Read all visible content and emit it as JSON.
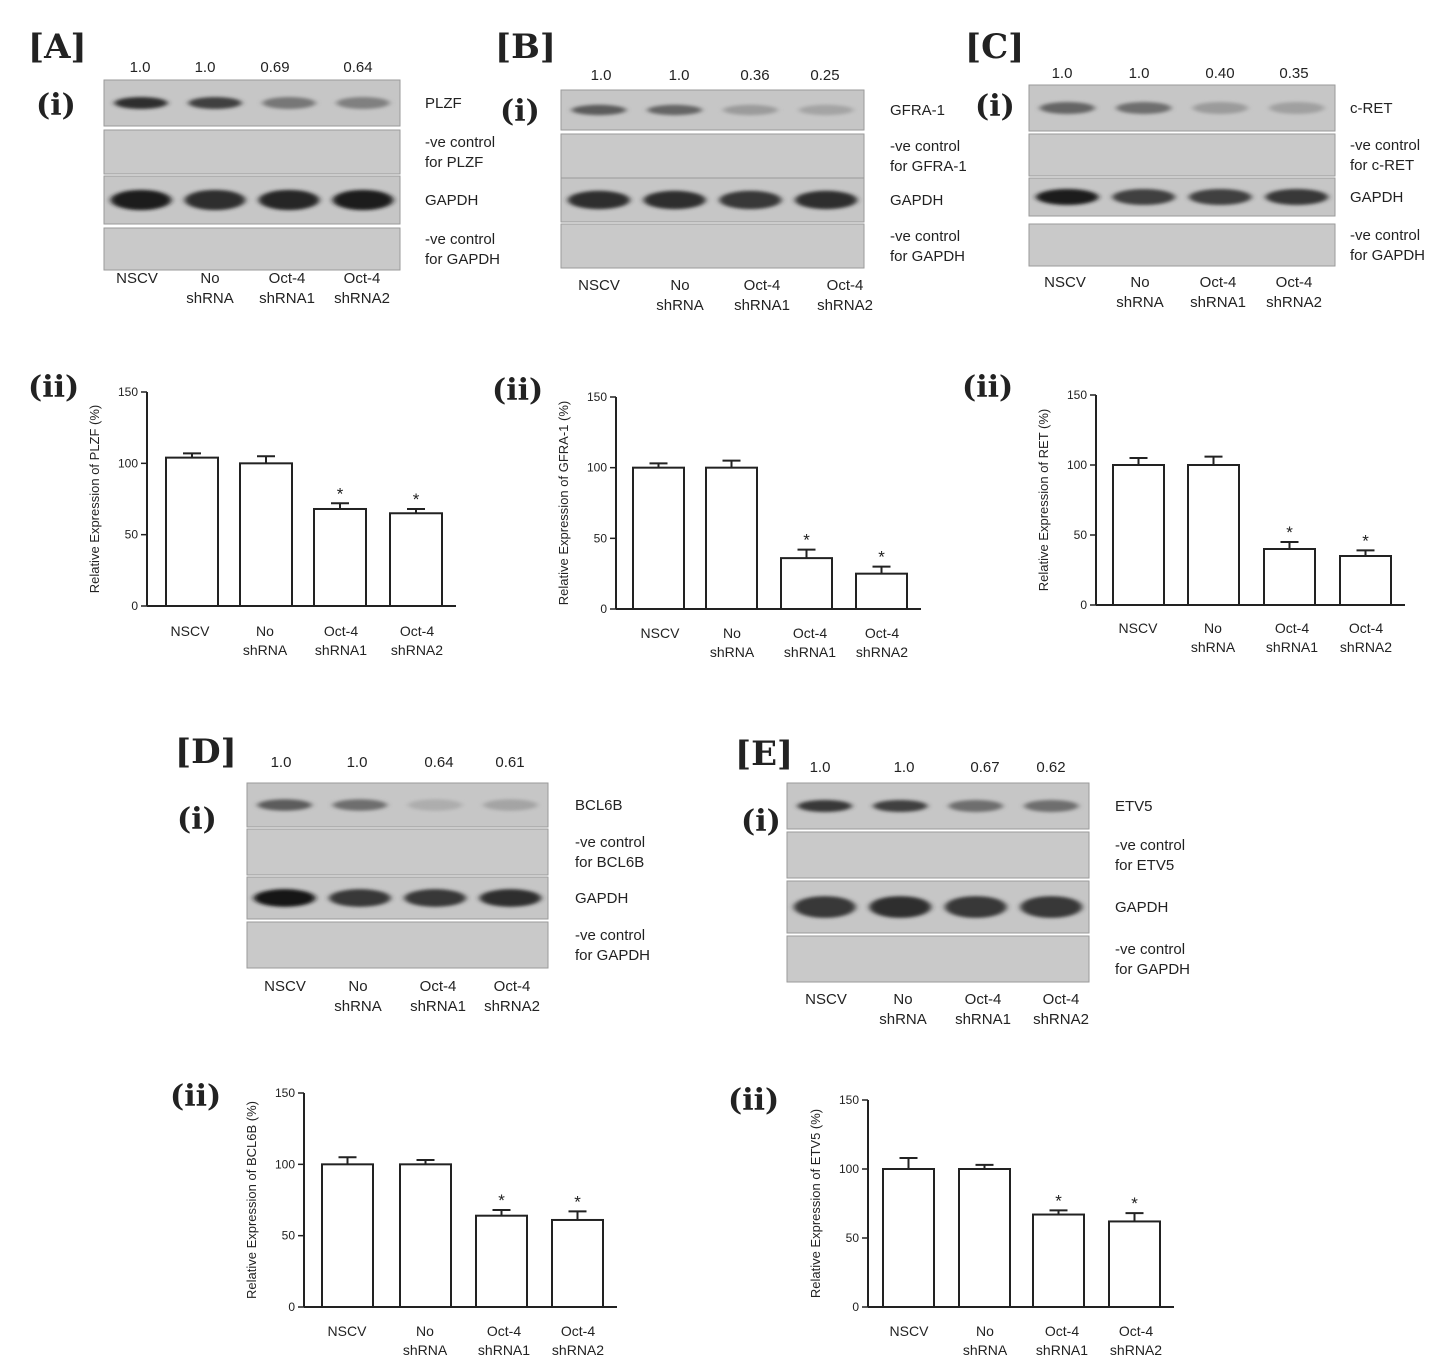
{
  "lanes": [
    [
      "NSCV"
    ],
    [
      "No",
      "shRNA"
    ],
    [
      "Oct-4",
      "shRNA1"
    ],
    [
      "Oct-4",
      "shRNA2"
    ]
  ],
  "sub_labels": {
    "blot": "(i)",
    "chart": "(ii)"
  },
  "significance_marker": "*",
  "panels": [
    {
      "letter": "[A]",
      "densitometry": [
        "1.0",
        "1.0",
        "0.69",
        "0.64"
      ],
      "blot_rows": [
        {
          "type": "target",
          "label": [
            "PLZF"
          ],
          "bands": [
            0.85,
            0.75,
            0.45,
            0.4
          ]
        },
        {
          "type": "control",
          "label": [
            "-ve control",
            "for PLZF"
          ]
        },
        {
          "type": "gapdh",
          "label": [
            "GAPDH"
          ],
          "bands": [
            0.95,
            0.85,
            0.9,
            0.95
          ]
        },
        {
          "type": "control",
          "label": [
            "-ve control",
            "for GAPDH"
          ]
        }
      ]
    },
    {
      "letter": "[B]",
      "densitometry": [
        "1.0",
        "1.0",
        "0.36",
        "0.25"
      ],
      "blot_rows": [
        {
          "type": "target",
          "label": [
            "GFRA-1"
          ],
          "bands": [
            0.6,
            0.55,
            0.25,
            0.2
          ]
        },
        {
          "type": "control",
          "label": [
            "-ve control",
            "for GFRA-1"
          ]
        },
        {
          "type": "gapdh",
          "label": [
            "GAPDH"
          ],
          "bands": [
            0.85,
            0.85,
            0.8,
            0.85
          ]
        },
        {
          "type": "control",
          "label": [
            "-ve control",
            "for GAPDH"
          ]
        }
      ]
    },
    {
      "letter": "[C]",
      "densitometry": [
        "1.0",
        "1.0",
        "0.40",
        "0.35"
      ],
      "blot_rows": [
        {
          "type": "target",
          "label": [
            "c-RET"
          ],
          "bands": [
            0.55,
            0.5,
            0.25,
            0.22
          ]
        },
        {
          "type": "control",
          "label": [
            "-ve control",
            "for c-RET"
          ]
        },
        {
          "type": "gapdh",
          "label": [
            "GAPDH"
          ],
          "bands": [
            0.95,
            0.75,
            0.75,
            0.8
          ]
        },
        {
          "type": "control",
          "label": [
            "-ve control",
            "for GAPDH"
          ]
        }
      ]
    },
    {
      "letter": "[D]",
      "densitometry": [
        "1.0",
        "1.0",
        "0.64",
        "0.61"
      ],
      "blot_rows": [
        {
          "type": "target",
          "label": [
            "BCL6B"
          ],
          "bands": [
            0.6,
            0.5,
            0.15,
            0.2
          ]
        },
        {
          "type": "control",
          "label": [
            "-ve control",
            "for BCL6B"
          ]
        },
        {
          "type": "gapdh",
          "label": [
            "GAPDH"
          ],
          "bands": [
            1.0,
            0.8,
            0.8,
            0.85
          ]
        },
        {
          "type": "control",
          "label": [
            "-ve control",
            "for GAPDH"
          ]
        }
      ]
    },
    {
      "letter": "[E]",
      "densitometry": [
        "1.0",
        "1.0",
        "0.67",
        "0.62"
      ],
      "blot_rows": [
        {
          "type": "target",
          "label": [
            "ETV5"
          ],
          "bands": [
            0.8,
            0.75,
            0.5,
            0.5
          ]
        },
        {
          "type": "control",
          "label": [
            "-ve control",
            "for ETV5"
          ]
        },
        {
          "type": "gapdh",
          "label": [
            "GAPDH"
          ],
          "bands": [
            0.8,
            0.85,
            0.8,
            0.8
          ]
        },
        {
          "type": "control",
          "label": [
            "-ve control",
            "for GAPDH"
          ]
        }
      ]
    }
  ],
  "chart_data": [
    {
      "type": "bar",
      "panel": "[A]",
      "categories": [
        "NSCV",
        "No shRNA",
        "Oct-4 shRNA1",
        "Oct-4 shRNA2"
      ],
      "values": [
        104,
        100,
        68,
        65
      ],
      "errors": [
        3,
        5,
        4,
        3
      ],
      "significant": [
        false,
        false,
        true,
        true
      ],
      "ylabel": "Relative Expression of PLZF (%)",
      "ylim": [
        0,
        150
      ],
      "yticks": [
        0,
        50,
        100,
        150
      ]
    },
    {
      "type": "bar",
      "panel": "[B]",
      "categories": [
        "NSCV",
        "No shRNA",
        "Oct-4 shRNA1",
        "Oct-4 shRNA2"
      ],
      "values": [
        100,
        100,
        36,
        25
      ],
      "errors": [
        3,
        5,
        6,
        5
      ],
      "significant": [
        false,
        false,
        true,
        true
      ],
      "ylabel": "Relative Expression of GFRA-1 (%)",
      "ylim": [
        0,
        150
      ],
      "yticks": [
        0,
        50,
        100,
        150
      ]
    },
    {
      "type": "bar",
      "panel": "[C]",
      "categories": [
        "NSCV",
        "No shRNA",
        "Oct-4 shRNA1",
        "Oct-4 shRNA2"
      ],
      "values": [
        100,
        100,
        40,
        35
      ],
      "errors": [
        5,
        6,
        5,
        4
      ],
      "significant": [
        false,
        false,
        true,
        true
      ],
      "ylabel": "Relative Expression of RET (%)",
      "ylim": [
        0,
        150
      ],
      "yticks": [
        0,
        50,
        100,
        150
      ]
    },
    {
      "type": "bar",
      "panel": "[D]",
      "categories": [
        "NSCV",
        "No shRNA",
        "Oct-4 shRNA1",
        "Oct-4 shRNA2"
      ],
      "values": [
        100,
        100,
        64,
        61
      ],
      "errors": [
        5,
        3,
        4,
        6
      ],
      "significant": [
        false,
        false,
        true,
        true
      ],
      "ylabel": "Relative Expression of BCL6B (%)",
      "ylim": [
        0,
        150
      ],
      "yticks": [
        0,
        50,
        100,
        150
      ]
    },
    {
      "type": "bar",
      "panel": "[E]",
      "categories": [
        "NSCV",
        "No shRNA",
        "Oct-4 shRNA1",
        "Oct-4 shRNA2"
      ],
      "values": [
        100,
        100,
        67,
        62
      ],
      "errors": [
        8,
        3,
        3,
        6
      ],
      "significant": [
        false,
        false,
        true,
        true
      ],
      "ylabel": "Relative Expression of ETV5 (%)",
      "ylim": [
        0,
        150
      ],
      "yticks": [
        0,
        50,
        100,
        150
      ]
    }
  ]
}
